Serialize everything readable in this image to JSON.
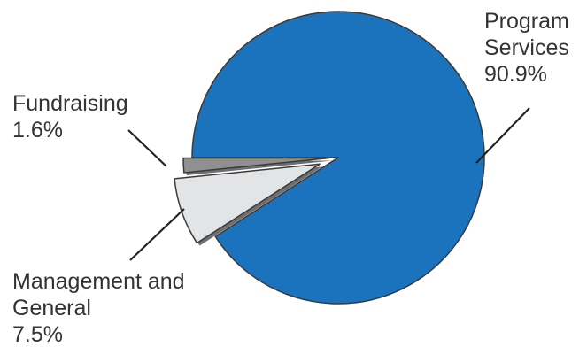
{
  "chart_data": {
    "type": "pie",
    "categories": [
      "Program Services",
      "Fundraising",
      "Management and General"
    ],
    "values": [
      90.9,
      1.6,
      7.5
    ],
    "unit": "%",
    "title": "",
    "labels": [
      {
        "lines": [
          "Program",
          "Services",
          "90.9%"
        ]
      },
      {
        "lines": [
          "Fundraising",
          "1.6%"
        ]
      },
      {
        "lines": [
          "Management and",
          "General",
          "7.5%"
        ]
      }
    ],
    "colors": {
      "program_services": "#1b73be",
      "fundraising": "#8e9092",
      "management_and_general": "#e3e4e6",
      "outline": "#3a3a3a",
      "leader_line": "#222222"
    },
    "exploded_slices": [
      "Fundraising",
      "Management and General"
    ],
    "legend": "none",
    "grid": false
  }
}
